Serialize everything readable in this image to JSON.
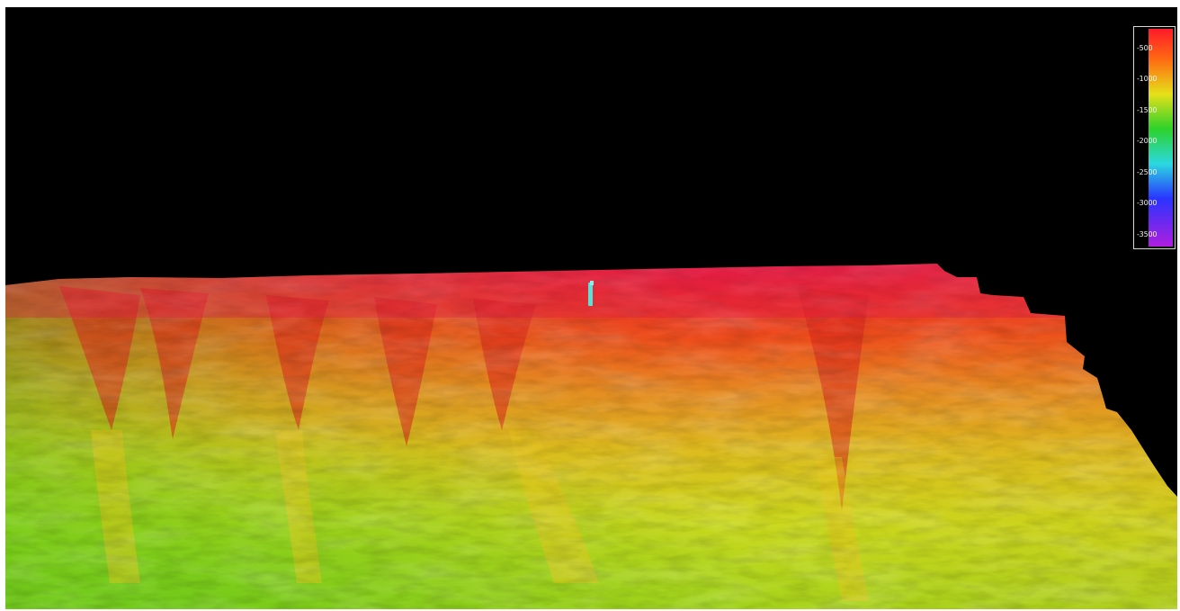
{
  "colorbar": {
    "labels": [
      "-500",
      "-1000",
      "-1500",
      "-2000",
      "-2500",
      "-3000",
      "-3500"
    ],
    "stops": [
      {
        "color": "#ff1a2a",
        "offset": "0%"
      },
      {
        "color": "#ff6a12",
        "offset": "14%"
      },
      {
        "color": "#e6e01a",
        "offset": "30%"
      },
      {
        "color": "#2dd22a",
        "offset": "46%"
      },
      {
        "color": "#2bd8e0",
        "offset": "62%"
      },
      {
        "color": "#2a34ff",
        "offset": "78%"
      },
      {
        "color": "#b01ee0",
        "offset": "100%"
      }
    ]
  },
  "terrain_colors": {
    "shelf": "#e8204c",
    "upper_slope": "#f0361e",
    "mid_slope": "#e2962a",
    "lower_slope": "#d6ce1c",
    "deep": "#8ed41c",
    "background": "#000000"
  },
  "marker": {
    "icon": "survey-marker-icon",
    "color": "#5ae0d6"
  }
}
